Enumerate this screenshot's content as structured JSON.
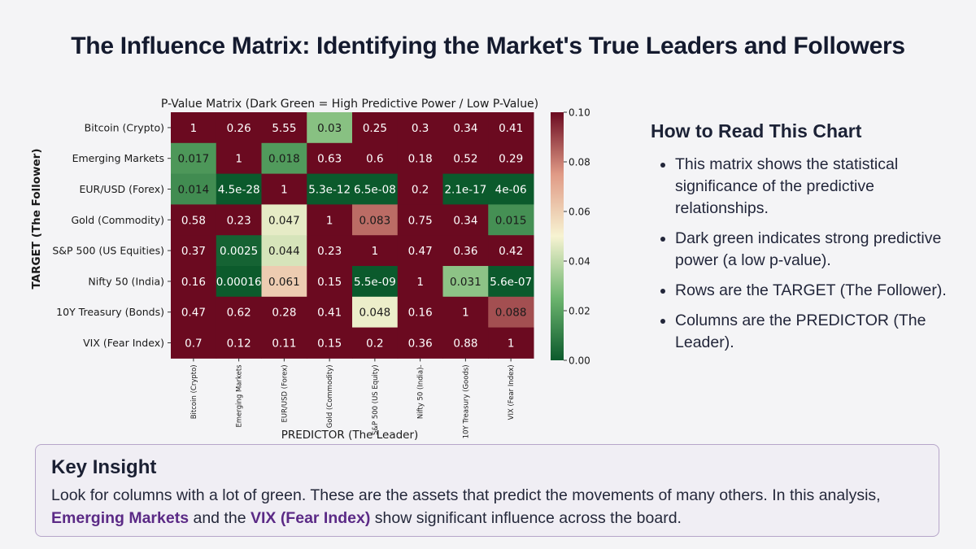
{
  "page": {
    "title": "The Influence Matrix: Identifying the Market's True Leaders and Followers"
  },
  "chart_data": {
    "type": "heatmap",
    "title": "P-Value Matrix (Dark Green = High Predictive Power / Low P-Value)",
    "xlabel": "PREDICTOR (The Leader)",
    "ylabel": "TARGET (The Follower)",
    "rows": [
      "Bitcoin (Crypto)",
      "Emerging Markets",
      "EUR/USD (Forex)",
      "Gold (Commodity)",
      "S&P 500 (US Equities)",
      "Nifty 50 (India)",
      "10Y Treasury (Bonds)",
      "VIX (Fear Index)"
    ],
    "columns": [
      "Bitcoin (Crypto)",
      "Emerging Markets",
      "EUR/USD (Forex)",
      "Gold (Commodity)",
      "S&P 500 (US Equity)",
      "Nifty 50 (India)-",
      "10Y Treasury (Goods)",
      "VIX (Fear Index)"
    ],
    "cell_labels": [
      [
        "1",
        "0.26",
        "5.55",
        "0.03",
        "0.25",
        "0.3",
        "0.34",
        "0.41"
      ],
      [
        "0.017",
        "1",
        "0.018",
        "0.63",
        "0.6",
        "0.18",
        "0.52",
        "0.29"
      ],
      [
        "0.014",
        "4.5e-28",
        "1",
        "5.3e-12",
        "6.5e-08",
        "0.2",
        "2.1e-17",
        "4e-06"
      ],
      [
        "0.58",
        "0.23",
        "0.047",
        "1",
        "0.083",
        "0.75",
        "0.34",
        "0.015"
      ],
      [
        "0.37",
        "0.0025",
        "0.044",
        "0.23",
        "1",
        "0.47",
        "0.36",
        "0.42"
      ],
      [
        "0.16",
        "0.00016",
        "0.061",
        "0.15",
        "5.5e-09",
        "1",
        "0.031",
        "5.6e-07"
      ],
      [
        "0.47",
        "0.62",
        "0.28",
        "0.41",
        "0.048",
        "0.16",
        "1",
        "0.088"
      ],
      [
        "0.7",
        "0.12",
        "0.11",
        "0.15",
        "0.2",
        "0.36",
        "0.88",
        "1"
      ]
    ],
    "colorbar": {
      "min": 0,
      "max": 0.1,
      "ticks": [
        "0.00",
        "0.02",
        "0.04",
        "0.06",
        "0.08",
        "0.10"
      ],
      "colors": {
        "low": "#0b5a2c",
        "mid_low": "#6cb46e",
        "mid": "#f7f3d2",
        "mid_high": "#e09a86",
        "high": "#6b0a20"
      }
    }
  },
  "side_panel": {
    "heading": "How to Read This Chart",
    "bullets": [
      "This matrix shows the statistical significance of the predictive relationships.",
      "Dark green indicates strong predictive power (a low p-value).",
      "Rows are the TARGET (The Follower).",
      "Columns are the PREDICTOR (The Leader)."
    ]
  },
  "insight": {
    "title": "Key Insight",
    "text_before": "Look for columns with a lot of green. These are the assets that predict the movements of many others. In this analysis, ",
    "highlight_1": "Emerging Markets",
    "text_middle": " and the ",
    "highlight_2": "VIX (Fear Index)",
    "text_after": " show significant influence across the board.",
    "highlight_color": "#5b2a86"
  }
}
